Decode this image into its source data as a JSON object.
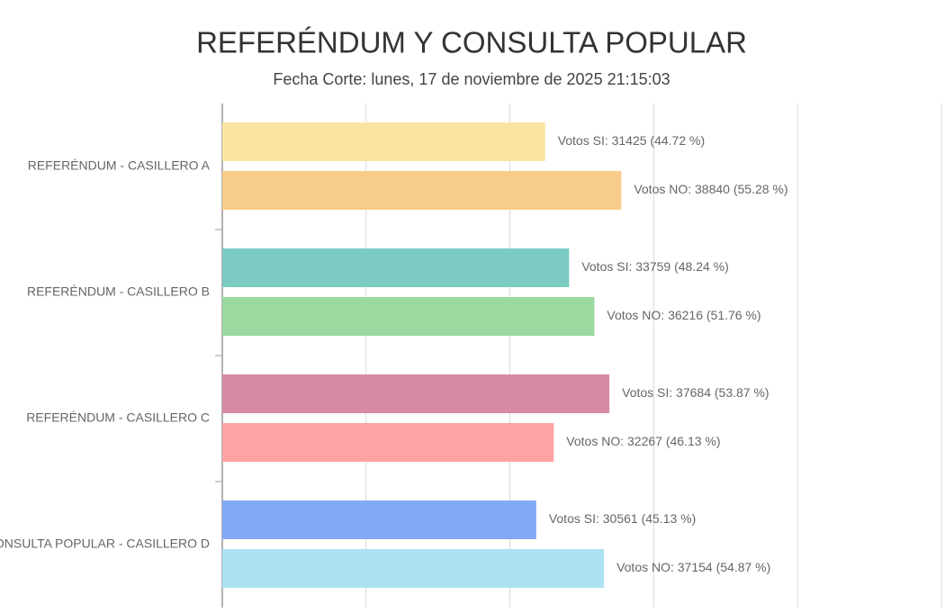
{
  "chart_data": {
    "type": "hbar",
    "title": "REFERÉNDUM Y CONSULTA POPULAR",
    "subtitle": "Fecha Corte: lunes, 17 de noviembre de 2025 21:15:03",
    "categories": [
      "REFERÉNDUM - CASILLERO A",
      "REFERÉNDUM - CASILLERO B",
      "REFERÉNDUM - CASILLERO C",
      "CONSULTA POPULAR - CASILLERO D"
    ],
    "series": [
      {
        "values": [
          31425,
          33759,
          37684,
          30561
        ],
        "value_labels": [
          "Votos SI: 31425 (44.72 %)",
          "Votos SI: 33759 (48.24 %)",
          "Votos SI: 37684 (53.87 %)",
          "Votos SI: 30561 (45.13 %)"
        ],
        "colors": [
          "#f9e59f",
          "#7ccbc2",
          "#d68aa6",
          "#82aaf4"
        ]
      },
      {
        "values": [
          38840,
          36216,
          32267,
          37154
        ],
        "value_labels": [
          "Votos NO: 38840 (55.28 %)",
          "Votos NO: 36216 (51.76 %)",
          "Votos NO: 32267 (46.13 %)",
          "Votos NO: 37154 (54.87 %)"
        ],
        "colors": [
          "#f8cc8b",
          "#9ad9a0",
          "#fca3a3",
          "#ade2f3"
        ]
      }
    ],
    "xlim": [
      0,
      70000
    ],
    "xticks": [
      0,
      14000,
      28000,
      42000,
      56000,
      70000
    ],
    "grid": true
  }
}
